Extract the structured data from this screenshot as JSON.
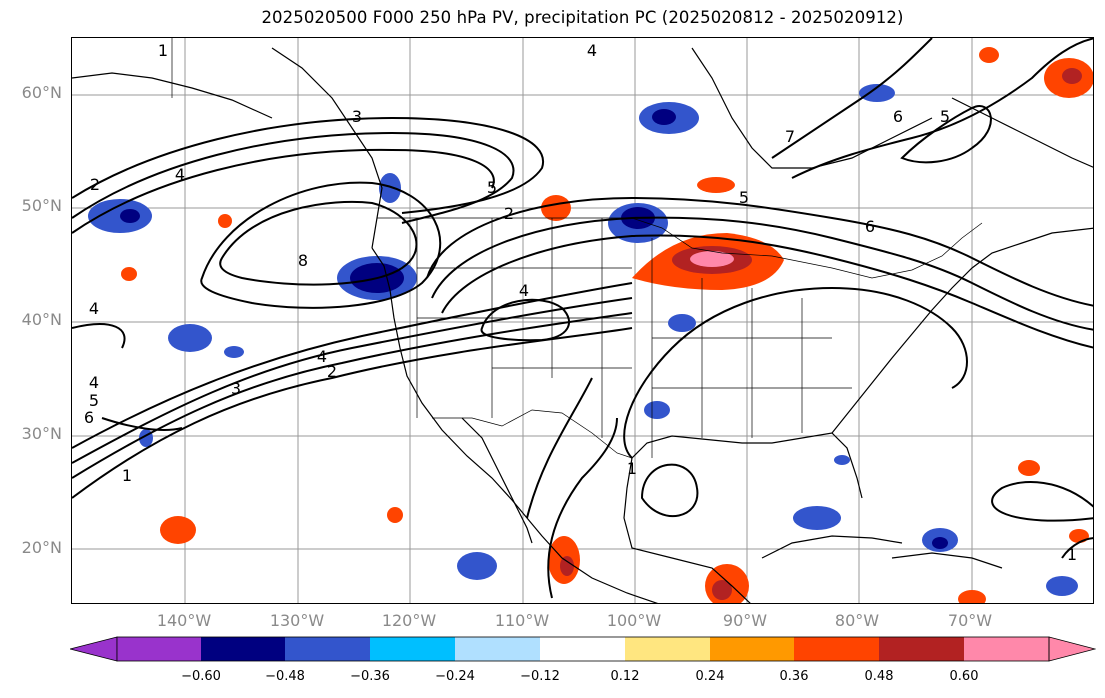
{
  "title": "2025020500 F000 250 hPa PV, precipitation PC (2025020812 - 2025020912)",
  "lat_labels": [
    "60°N",
    "50°N",
    "40°N",
    "30°N",
    "20°N"
  ],
  "lon_labels": [
    "140°W",
    "130°W",
    "120°W",
    "110°W",
    "100°W",
    "90°W",
    "80°W",
    "70°W"
  ],
  "colorbar": {
    "ticks": [
      "−0.60",
      "−0.48",
      "−0.36",
      "−0.24",
      "−0.12",
      "0.12",
      "0.24",
      "0.36",
      "0.48",
      "0.60"
    ],
    "colors": [
      "#9933cc",
      "#000080",
      "#3355cc",
      "#00bfff",
      "#b0e0ff",
      "#ffffff",
      "#ffe680",
      "#ff9900",
      "#ff4400",
      "#b22222",
      "#ff88aa"
    ],
    "under_color": "#9933cc",
    "over_color": "#ff88aa"
  },
  "contour_labels": [
    "1",
    "2",
    "3",
    "4",
    "5",
    "6",
    "7",
    "8"
  ]
}
